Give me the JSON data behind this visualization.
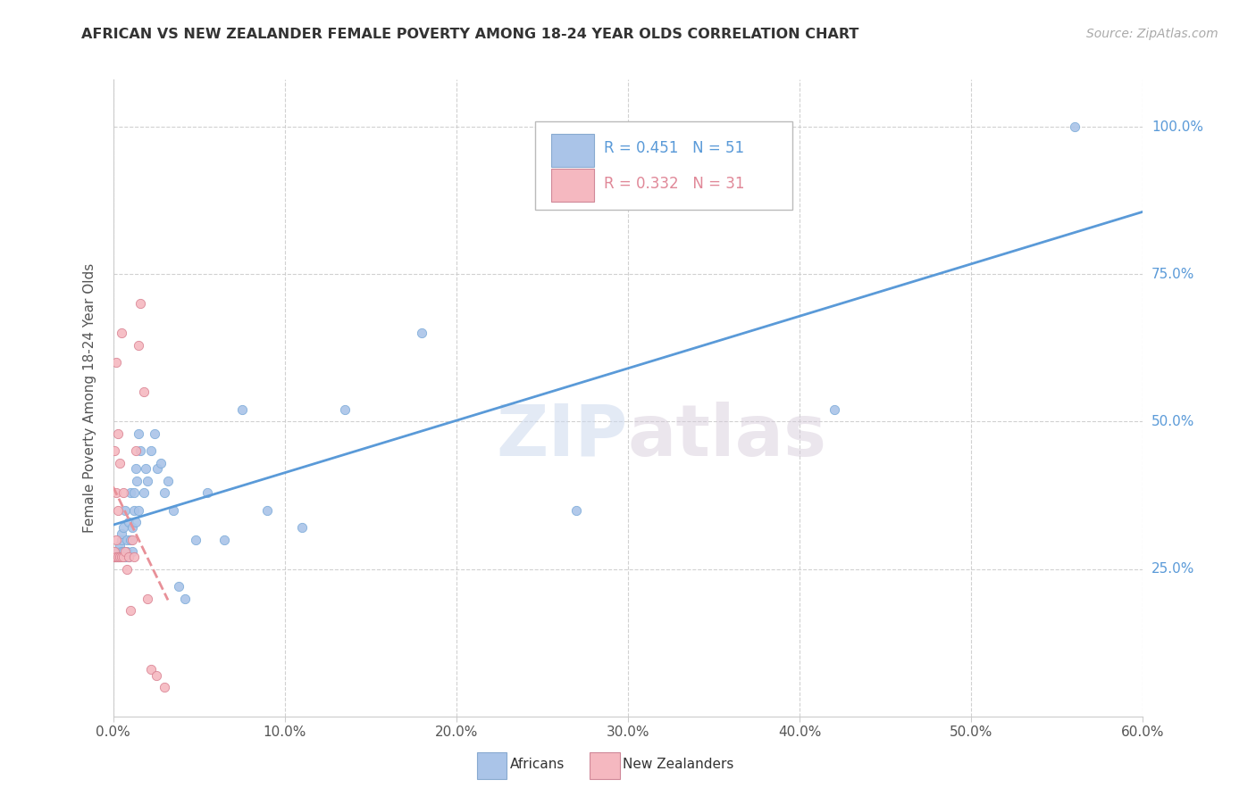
{
  "title": "AFRICAN VS NEW ZEALANDER FEMALE POVERTY AMONG 18-24 YEAR OLDS CORRELATION CHART",
  "source": "Source: ZipAtlas.com",
  "ylabel": "Female Poverty Among 18-24 Year Olds",
  "blue_color": "#aac4e8",
  "pink_color": "#f5b8c0",
  "blue_line_color": "#5a9ad8",
  "pink_line_color": "#e89098",
  "watermark": "ZIPatlas",
  "xlim": [
    0,
    0.6
  ],
  "ylim": [
    0,
    1.08
  ],
  "xticks": [
    0,
    0.1,
    0.2,
    0.3,
    0.4,
    0.5,
    0.6
  ],
  "yticks": [
    0.25,
    0.5,
    0.75,
    1.0
  ],
  "africans_x": [
    0.002,
    0.003,
    0.003,
    0.004,
    0.004,
    0.005,
    0.005,
    0.005,
    0.006,
    0.006,
    0.007,
    0.007,
    0.008,
    0.008,
    0.009,
    0.009,
    0.01,
    0.01,
    0.011,
    0.011,
    0.012,
    0.012,
    0.013,
    0.013,
    0.014,
    0.015,
    0.015,
    0.016,
    0.018,
    0.019,
    0.02,
    0.022,
    0.024,
    0.026,
    0.028,
    0.03,
    0.032,
    0.035,
    0.038,
    0.042,
    0.048,
    0.055,
    0.065,
    0.075,
    0.09,
    0.11,
    0.135,
    0.18,
    0.27,
    0.42,
    0.56
  ],
  "africans_y": [
    0.27,
    0.27,
    0.28,
    0.29,
    0.27,
    0.28,
    0.3,
    0.31,
    0.28,
    0.32,
    0.27,
    0.35,
    0.28,
    0.3,
    0.27,
    0.33,
    0.3,
    0.38,
    0.32,
    0.28,
    0.38,
    0.35,
    0.42,
    0.33,
    0.4,
    0.35,
    0.48,
    0.45,
    0.38,
    0.42,
    0.4,
    0.45,
    0.48,
    0.42,
    0.43,
    0.38,
    0.4,
    0.35,
    0.22,
    0.2,
    0.3,
    0.38,
    0.3,
    0.52,
    0.35,
    0.32,
    0.52,
    0.65,
    0.35,
    0.52,
    1.0
  ],
  "nz_x": [
    0.001,
    0.001,
    0.001,
    0.001,
    0.002,
    0.002,
    0.002,
    0.002,
    0.003,
    0.003,
    0.003,
    0.004,
    0.004,
    0.005,
    0.005,
    0.006,
    0.006,
    0.007,
    0.008,
    0.009,
    0.01,
    0.011,
    0.012,
    0.013,
    0.015,
    0.016,
    0.018,
    0.02,
    0.022,
    0.025,
    0.03
  ],
  "nz_y": [
    0.27,
    0.27,
    0.28,
    0.45,
    0.27,
    0.3,
    0.38,
    0.6,
    0.27,
    0.35,
    0.48,
    0.27,
    0.43,
    0.27,
    0.65,
    0.27,
    0.38,
    0.28,
    0.25,
    0.27,
    0.18,
    0.3,
    0.27,
    0.45,
    0.63,
    0.7,
    0.55,
    0.2,
    0.08,
    0.07,
    0.05
  ]
}
